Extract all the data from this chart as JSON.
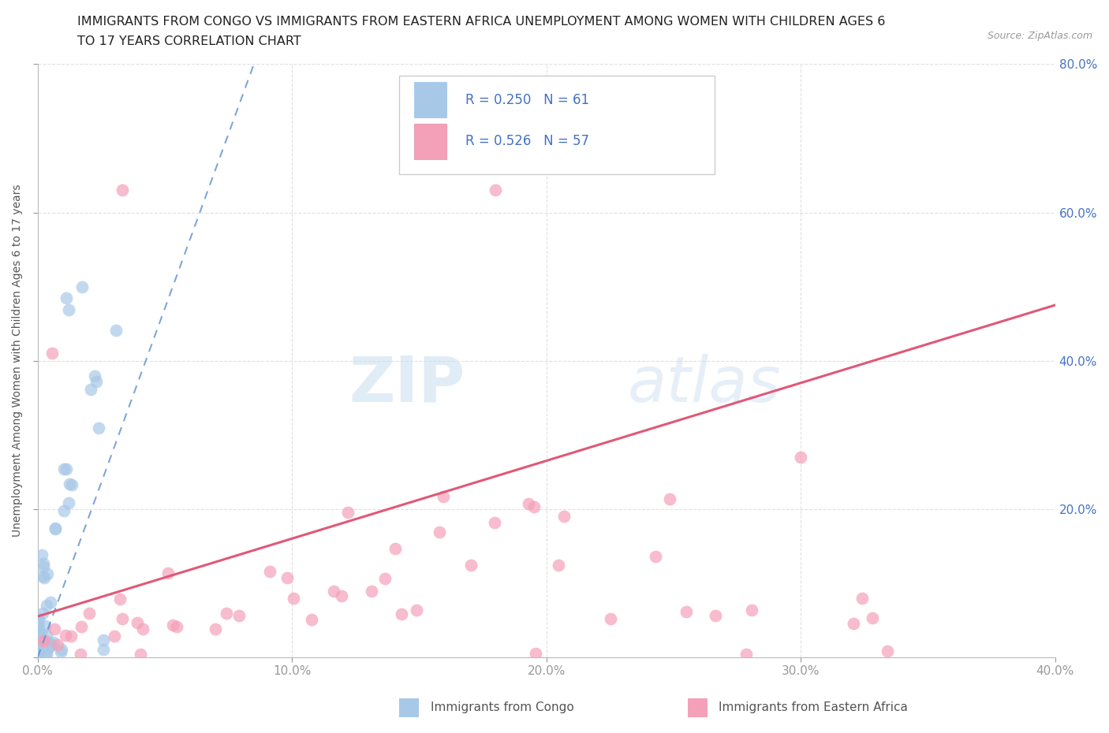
{
  "title_line1": "IMMIGRANTS FROM CONGO VS IMMIGRANTS FROM EASTERN AFRICA UNEMPLOYMENT AMONG WOMEN WITH CHILDREN AGES 6",
  "title_line2": "TO 17 YEARS CORRELATION CHART",
  "source": "Source: ZipAtlas.com",
  "ylabel": "Unemployment Among Women with Children Ages 6 to 17 years",
  "xlim": [
    0.0,
    0.4
  ],
  "ylim": [
    0.0,
    0.8
  ],
  "xticks": [
    0.0,
    0.1,
    0.2,
    0.3,
    0.4
  ],
  "yticks": [
    0.0,
    0.2,
    0.4,
    0.6,
    0.8
  ],
  "xtick_labels": [
    "0.0%",
    "10.0%",
    "20.0%",
    "30.0%",
    "40.0%"
  ],
  "ytick_labels_right": [
    "",
    "20.0%",
    "40.0%",
    "60.0%",
    "80.0%"
  ],
  "legend_r1": "R = 0.250",
  "legend_n1": "N = 61",
  "legend_r2": "R = 0.526",
  "legend_n2": "N = 57",
  "color_congo": "#a8c8e8",
  "color_eastern": "#f4a0b8",
  "color_trendline_congo": "#5588cc",
  "color_trendline_eastern": "#e05878",
  "color_text_blue": "#4472c4",
  "watermark_zip": "ZIP",
  "watermark_atlas": "atlas",
  "background_color": "#ffffff",
  "grid_color": "#cccccc",
  "trendline_congo_x0": 0.0,
  "trendline_congo_y0": 0.0,
  "trendline_congo_x1": 0.085,
  "trendline_congo_y1": 0.8,
  "trendline_eastern_x0": 0.0,
  "trendline_eastern_y0": 0.055,
  "trendline_eastern_x1": 0.4,
  "trendline_eastern_y1": 0.475
}
